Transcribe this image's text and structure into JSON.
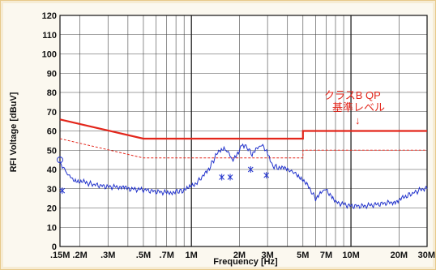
{
  "chart_data": {
    "type": "line",
    "xlabel": "Frequency [Hz]",
    "ylabel": "RFI Voltage [dBuV]",
    "x_scale": "log",
    "xlim": [
      0.15,
      30
    ],
    "ylim": [
      0,
      120
    ],
    "y_ticks": [
      0,
      10,
      20,
      30,
      40,
      50,
      60,
      70,
      80,
      90,
      100,
      110,
      120
    ],
    "x_ticks": [
      {
        "value": 0.15,
        "label": ".15M"
      },
      {
        "value": 0.2,
        "label": ".2M"
      },
      {
        "value": 0.3,
        "label": ".3M"
      },
      {
        "value": 0.5,
        "label": ".5M"
      },
      {
        "value": 0.7,
        "label": ".7M"
      },
      {
        "value": 1,
        "label": "1M"
      },
      {
        "value": 2,
        "label": "2M"
      },
      {
        "value": 3,
        "label": "3M"
      },
      {
        "value": 5,
        "label": "5M"
      },
      {
        "value": 7,
        "label": "7M"
      },
      {
        "value": 10,
        "label": "10M"
      },
      {
        "value": 20,
        "label": "20M"
      },
      {
        "value": 30,
        "label": "30M"
      }
    ],
    "grid": true,
    "annotation": {
      "lines": [
        "クラスB QP",
        "基準レベル"
      ],
      "arrow": "↓"
    },
    "series": [
      {
        "color": "#e3261b",
        "style": "solid",
        "points": [
          [
            0.15,
            66
          ],
          [
            0.5,
            56
          ],
          [
            5,
            56
          ],
          [
            5,
            60
          ],
          [
            30,
            60
          ]
        ]
      },
      {
        "color": "#e3261b",
        "style": "dashed",
        "points": [
          [
            0.15,
            56
          ],
          [
            0.5,
            46
          ],
          [
            5,
            46
          ],
          [
            5,
            50
          ],
          [
            30,
            50
          ]
        ]
      },
      {
        "color": "#2233cc",
        "style": "solid",
        "points": [
          [
            0.15,
            44
          ],
          [
            0.155,
            42
          ],
          [
            0.16,
            40
          ],
          [
            0.17,
            37
          ],
          [
            0.18,
            35
          ],
          [
            0.2,
            34
          ],
          [
            0.22,
            33
          ],
          [
            0.25,
            32
          ],
          [
            0.3,
            31
          ],
          [
            0.35,
            31
          ],
          [
            0.4,
            30
          ],
          [
            0.5,
            29.5
          ],
          [
            0.6,
            28.5
          ],
          [
            0.7,
            28
          ],
          [
            0.8,
            28.5
          ],
          [
            0.9,
            29
          ],
          [
            1.0,
            31
          ],
          [
            1.1,
            34
          ],
          [
            1.2,
            37
          ],
          [
            1.3,
            41
          ],
          [
            1.4,
            46
          ],
          [
            1.5,
            50
          ],
          [
            1.6,
            51
          ],
          [
            1.7,
            49
          ],
          [
            1.8,
            45
          ],
          [
            2.0,
            50
          ],
          [
            2.1,
            53
          ],
          [
            2.2,
            52
          ],
          [
            2.4,
            48
          ],
          [
            2.6,
            51
          ],
          [
            2.8,
            53
          ],
          [
            3.0,
            48
          ],
          [
            3.2,
            42
          ],
          [
            3.5,
            41
          ],
          [
            4.0,
            40
          ],
          [
            4.5,
            38
          ],
          [
            5.0,
            35
          ],
          [
            5.5,
            30
          ],
          [
            6.0,
            25
          ],
          [
            6.5,
            28
          ],
          [
            7.0,
            30
          ],
          [
            7.5,
            26
          ],
          [
            8.0,
            23
          ],
          [
            10,
            21
          ],
          [
            12,
            21
          ],
          [
            15,
            22
          ],
          [
            18,
            23
          ],
          [
            20,
            24
          ],
          [
            22,
            26
          ],
          [
            25,
            28
          ],
          [
            28,
            30
          ],
          [
            30,
            30
          ]
        ]
      }
    ],
    "markers": [
      {
        "x": 0.15,
        "y": 45,
        "shape": "circle"
      },
      {
        "x": 0.155,
        "y": 29,
        "shape": "star"
      },
      {
        "x": 1.55,
        "y": 36,
        "shape": "star"
      },
      {
        "x": 1.75,
        "y": 36,
        "shape": "star"
      },
      {
        "x": 2.35,
        "y": 40,
        "shape": "star"
      },
      {
        "x": 2.95,
        "y": 37,
        "shape": "star"
      }
    ]
  }
}
